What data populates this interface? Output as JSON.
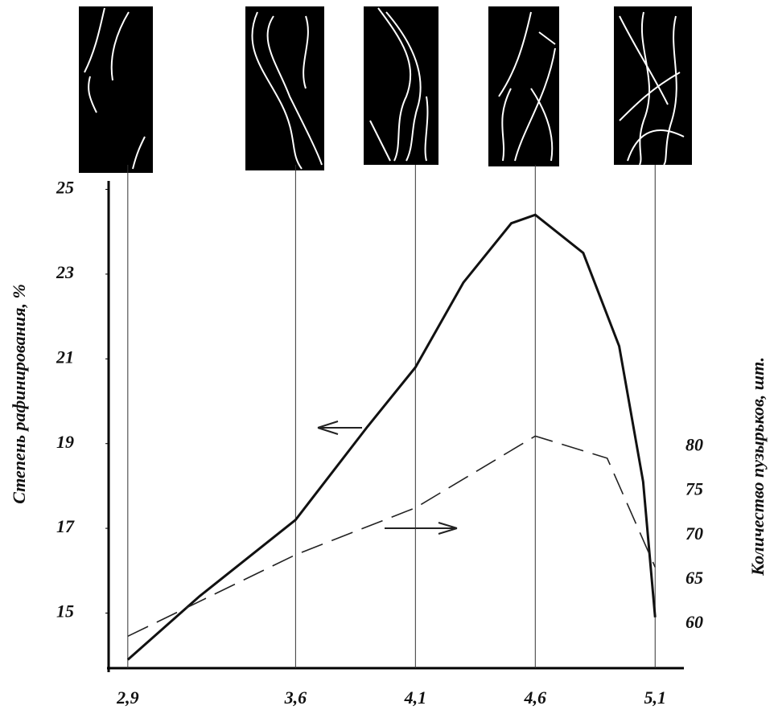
{
  "chart_data": {
    "type": "line",
    "ylabel": "Степень рафинирования, %",
    "y2label": "Количество пузырьков, шт.",
    "xlim": [
      2.82,
      5.22
    ],
    "xticks": [
      {
        "value": 2.9,
        "label": "2,9"
      },
      {
        "value": 3.6,
        "label": "3,6"
      },
      {
        "value": 4.1,
        "label": "4,1"
      },
      {
        "value": 4.6,
        "label": "4,6"
      },
      {
        "value": 5.1,
        "label": "5,1"
      }
    ],
    "ylim": [
      13.7,
      25.2
    ],
    "yticks": [
      15,
      17,
      19,
      21,
      23,
      25
    ],
    "y2lim": [
      55,
      110
    ],
    "y2ticks": [
      60,
      65,
      70,
      75,
      80
    ],
    "grid": "x",
    "series": [
      {
        "color": "#111111",
        "x": [
          2.9,
          3.2,
          3.6,
          3.9,
          4.1,
          4.3,
          4.5,
          4.6,
          4.8,
          4.95,
          5.05,
          5.1
        ],
        "values": [
          13.9,
          15.4,
          17.2,
          19.4,
          20.8,
          22.8,
          24.2,
          24.4,
          23.5,
          21.3,
          18.1,
          14.9
        ]
      },
      {
        "color": "#222222",
        "axis": "y2",
        "dashed": true,
        "x": [
          2.9,
          3.6,
          4.1,
          4.6,
          4.9,
          5.1
        ],
        "values": [
          58.6,
          67.8,
          73.1,
          81.2,
          78.7,
          66.4
        ]
      }
    ]
  }
}
